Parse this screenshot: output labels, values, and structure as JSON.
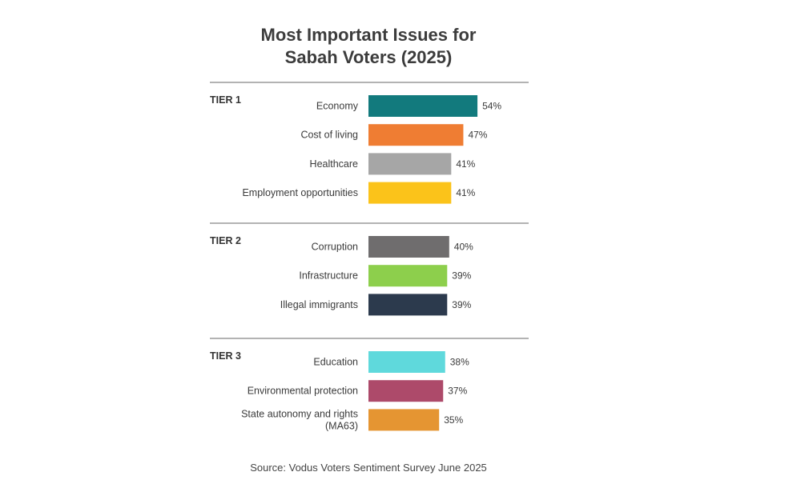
{
  "chart_data": {
    "type": "bar",
    "orientation": "horizontal",
    "title_lines": [
      "Most Important Issues for",
      "Sabah Voters (2025)"
    ],
    "value_suffix": "%",
    "groups": [
      {
        "label": "TIER 1",
        "bars": [
          {
            "label": [
              "Economy"
            ],
            "value": 54,
            "color": "#127a7d"
          },
          {
            "label": [
              "Cost of living"
            ],
            "value": 47,
            "color": "#ef7d33"
          },
          {
            "label": [
              "Healthcare"
            ],
            "value": 41,
            "color": "#a6a6a6"
          },
          {
            "label": [
              "Employment opportunities"
            ],
            "value": 41,
            "color": "#fbc31a"
          }
        ]
      },
      {
        "label": "TIER 2",
        "bars": [
          {
            "label": [
              "Corruption"
            ],
            "value": 40,
            "color": "#6f6d6e"
          },
          {
            "label": [
              "Infrastructure"
            ],
            "value": 39,
            "color": "#8dcf4c"
          },
          {
            "label": [
              "Illegal immigrants"
            ],
            "value": 39,
            "color": "#2c3a4d"
          }
        ]
      },
      {
        "label": "TIER 3",
        "bars": [
          {
            "label": [
              "Education"
            ],
            "value": 38,
            "color": "#5fd9dc"
          },
          {
            "label": [
              "Environmental protection"
            ],
            "value": 37,
            "color": "#ad4a6a"
          },
          {
            "label": [
              "State autonomy and rights",
              "(MA63)"
            ],
            "value": 35,
            "color": "#e59532"
          }
        ]
      }
    ]
  },
  "source": "Source: Vodus Voters Sentiment Survey June 2025"
}
